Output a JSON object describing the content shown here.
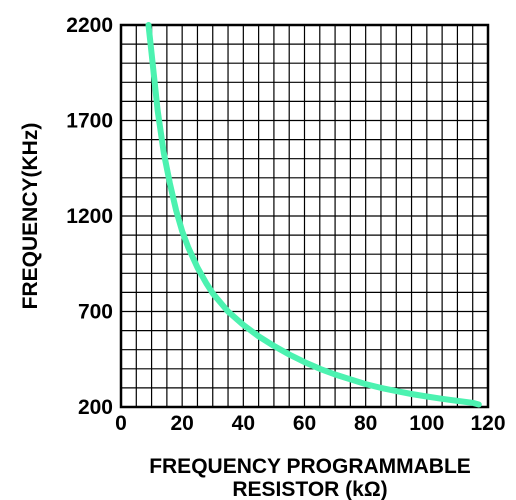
{
  "chart_data": {
    "type": "line",
    "title": "",
    "xlabel_lines": [
      "FREQUENCY PROGRAMMABLE",
      "RESISTOR (kΩ)"
    ],
    "ylabel": "FREQUENCY(KHz)",
    "xlim": [
      0,
      120
    ],
    "ylim": [
      200,
      2200
    ],
    "x_ticks": [
      "0",
      "20",
      "40",
      "60",
      "80",
      "100",
      "120"
    ],
    "y_ticks": [
      "200",
      "700",
      "1200",
      "1700",
      "2200"
    ],
    "grid": true,
    "legend": "none",
    "curve_color": "#4cf2b0",
    "grid_color": "#000000",
    "series": [
      {
        "x": [
          9,
          10,
          12,
          14,
          16,
          18,
          20,
          22,
          25,
          28,
          30,
          35,
          40,
          45,
          50,
          55,
          60,
          65,
          70,
          75,
          80,
          85,
          90,
          95,
          100,
          105,
          110,
          115,
          117
        ],
        "y": [
          2200,
          2050,
          1750,
          1530,
          1370,
          1230,
          1120,
          1035,
          930,
          845,
          795,
          700,
          630,
          570,
          520,
          475,
          435,
          400,
          370,
          345,
          320,
          300,
          283,
          268,
          255,
          243,
          232,
          222,
          213
        ]
      }
    ]
  }
}
